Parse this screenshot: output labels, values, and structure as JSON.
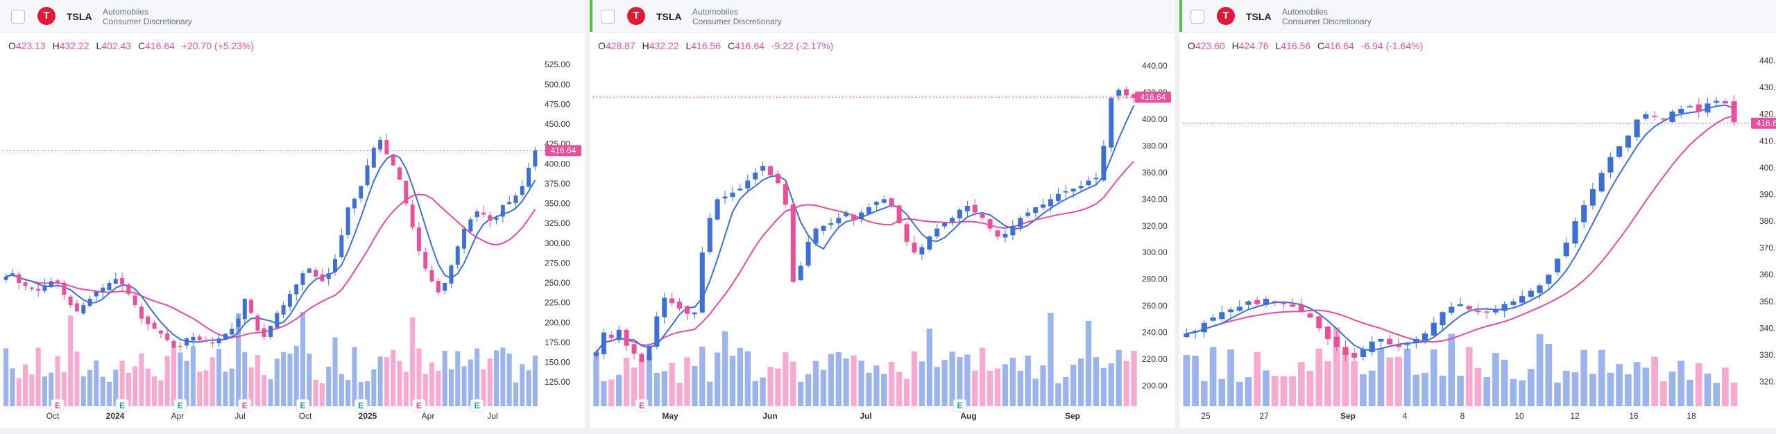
{
  "colors": {
    "up": "#3d6fd9",
    "down": "#ec4f9a",
    "ma_fast": "#3d6fd9",
    "ma_slow": "#e84aa0",
    "vol_up": "#9bb4ee",
    "vol_down": "#f7a9cf",
    "accent": "#53c23e",
    "logo": "#e31937"
  },
  "panels": [
    {
      "symbol": "TSLA",
      "logo_icon": "T",
      "industry": "Automobiles",
      "sector": "Consumer Discretionary",
      "ohlc": {
        "o_label": "O",
        "o": "423.13",
        "h_label": "H",
        "h": "432.22",
        "l_label": "L",
        "l": "402.43",
        "c_label": "C",
        "c": "416.64",
        "change": "+20.70 (+5.23%)"
      },
      "price_tag": "416.64"
    },
    {
      "symbol": "TSLA",
      "logo_icon": "T",
      "industry": "Automobiles",
      "sector": "Consumer Discretionary",
      "ohlc": {
        "o_label": "O",
        "o": "428.87",
        "h_label": "H",
        "h": "432.22",
        "l_label": "L",
        "l": "416.56",
        "c_label": "C",
        "c": "416.64",
        "change": "-9.22 (-2.17%)"
      },
      "price_tag": "416.64"
    },
    {
      "symbol": "TSLA",
      "logo_icon": "T",
      "industry": "Automobiles",
      "sector": "Consumer Discretionary",
      "ohlc": {
        "o_label": "O",
        "o": "423.60",
        "h_label": "H",
        "h": "424.76",
        "l_label": "L",
        "l": "416.56",
        "c_label": "C",
        "c": "416.64",
        "change": "-6.94 (-1.64%)"
      },
      "price_tag": "416.64"
    }
  ],
  "chart_data": [
    {
      "type": "candlestick",
      "ylim": [
        112,
        540
      ],
      "y_ticks": [
        125,
        150,
        175,
        200,
        225,
        250,
        275,
        300,
        325,
        350,
        375,
        400,
        425,
        450,
        475,
        500,
        525
      ],
      "x_ticks": [
        "Oct",
        "2024",
        "Apr",
        "Jul",
        "Oct",
        "2025",
        "Apr",
        "Jul"
      ],
      "x_ticks_bold": [
        "2024",
        "2025"
      ],
      "last_price": 416.64,
      "earnings_marker": "E",
      "series_ma": [
        "fast",
        "slow"
      ],
      "close": [
        258,
        262,
        250,
        246,
        244,
        240,
        247,
        252,
        250,
        235,
        222,
        214,
        222,
        230,
        239,
        244,
        250,
        255,
        248,
        236,
        222,
        205,
        198,
        192,
        186,
        178,
        168,
        170,
        180,
        182,
        178,
        176,
        174,
        180,
        186,
        192,
        205,
        230,
        212,
        190,
        182,
        196,
        212,
        222,
        236,
        248,
        262,
        268,
        258,
        252,
        262,
        280,
        310,
        345,
        356,
        372,
        398,
        420,
        430,
        412,
        398,
        380,
        350,
        320,
        290,
        268,
        252,
        238,
        250,
        272,
        296,
        318,
        330,
        340,
        336,
        328,
        332,
        348,
        352,
        360,
        372,
        395,
        417
      ],
      "earnings_idx": [
        8,
        18,
        27,
        37,
        46,
        55,
        64,
        73
      ]
    },
    {
      "type": "candlestick",
      "ylim": [
        195,
        450
      ],
      "y_ticks": [
        200,
        220,
        240,
        260,
        280,
        300,
        320,
        340,
        360,
        380,
        400,
        420,
        440
      ],
      "x_ticks": [
        "May",
        "Jun",
        "Jul",
        "Aug",
        "Sep"
      ],
      "x_ticks_bold": [
        "May",
        "Jun",
        "Jul",
        "Aug",
        "Sep"
      ],
      "last_price": 416.64,
      "earnings_marker": "E",
      "close": [
        225,
        240,
        236,
        242,
        230,
        224,
        218,
        230,
        252,
        266,
        262,
        258,
        254,
        255,
        300,
        326,
        340,
        342,
        345,
        348,
        354,
        360,
        365,
        358,
        352,
        336,
        278,
        290,
        308,
        318,
        320,
        322,
        326,
        330,
        324,
        330,
        334,
        338,
        340,
        335,
        322,
        308,
        300,
        304,
        312,
        318,
        322,
        326,
        332,
        335,
        330,
        326,
        318,
        312,
        314,
        320,
        326,
        330,
        334,
        336,
        340,
        344,
        346,
        348,
        350,
        354,
        356,
        380,
        416,
        422,
        418,
        416
      ],
      "earnings_idx": [
        6,
        48
      ]
    },
    {
      "type": "candlestick",
      "ylim": [
        316,
        443
      ],
      "y_ticks": [
        320,
        330,
        340,
        350,
        360,
        370,
        380,
        390,
        400,
        410,
        420,
        430,
        440
      ],
      "x_ticks": [
        "25",
        "27",
        "Sep",
        "4",
        "8",
        "10",
        "12",
        "16",
        "18"
      ],
      "x_ticks_bold": [
        "Sep"
      ],
      "last_price": 416.64,
      "close": [
        338,
        339,
        342,
        344,
        346,
        347,
        348,
        350,
        349,
        351,
        350,
        349,
        348,
        346,
        344,
        340,
        336,
        333,
        330,
        329,
        332,
        335,
        336,
        334,
        333,
        334,
        336,
        338,
        342,
        346,
        348,
        349,
        347,
        346,
        346,
        347,
        349,
        350,
        352,
        354,
        356,
        360,
        366,
        372,
        380,
        386,
        392,
        398,
        404,
        408,
        412,
        418,
        420,
        419,
        418,
        421,
        422,
        423,
        421,
        424,
        425,
        424,
        417
      ]
    }
  ]
}
